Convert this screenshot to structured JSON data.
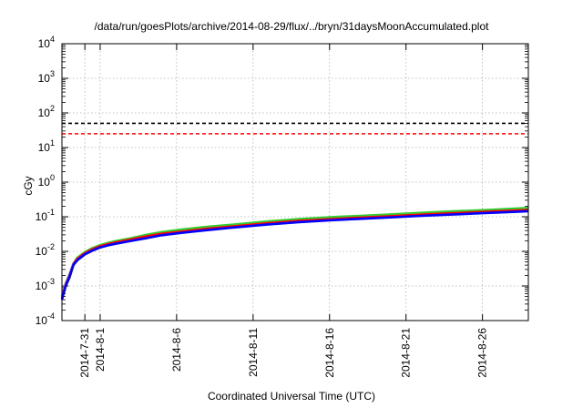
{
  "chart_data": {
    "type": "line",
    "title": "/data/run/goesPlots/archive/2014-08-29/flux/../bryn/31daysMoonAccumulated.plot",
    "xlabel": "Coordinated Universal Time (UTC)",
    "ylabel": "cGy",
    "yscale": "log",
    "ylim": [
      0.0001,
      10000
    ],
    "y_ticks": [
      {
        "value": 0.0001,
        "base": "10",
        "exp": "-4"
      },
      {
        "value": 0.001,
        "base": "10",
        "exp": "-3"
      },
      {
        "value": 0.01,
        "base": "10",
        "exp": "-2"
      },
      {
        "value": 0.1,
        "base": "10",
        "exp": "-1"
      },
      {
        "value": 1,
        "base": "10",
        "exp": "0"
      },
      {
        "value": 10,
        "base": "10",
        "exp": "1"
      },
      {
        "value": 100,
        "base": "10",
        "exp": "2"
      },
      {
        "value": 1000,
        "base": "10",
        "exp": "3"
      },
      {
        "value": 10000,
        "base": "10",
        "exp": "4"
      }
    ],
    "xlim": [
      "2014-07-29T12:00",
      "2014-08-29T00:00"
    ],
    "x_ticks": [
      {
        "value": "2014-07-31",
        "label": "2014-7-31"
      },
      {
        "value": "2014-08-01",
        "label": "2014-8-1"
      },
      {
        "value": "2014-08-06",
        "label": "2014-8-6"
      },
      {
        "value": "2014-08-11",
        "label": "2014-8-11"
      },
      {
        "value": "2014-08-16",
        "label": "2014-8-16"
      },
      {
        "value": "2014-08-21",
        "label": "2014-8-21"
      },
      {
        "value": "2014-08-26",
        "label": "2014-8-26"
      }
    ],
    "grid": true,
    "reference_lines": [
      {
        "y": 50,
        "color": "#000000",
        "style": "dashed"
      },
      {
        "y": 25,
        "color": "#ff0000",
        "style": "dashed"
      }
    ],
    "series": [
      {
        "color": "#33cc33",
        "x": [
          "2014-07-29T12:00",
          "2014-07-29T18:00",
          "2014-07-30T00:00",
          "2014-07-30T06:00",
          "2014-07-30T12:00",
          "2014-07-31T00:00",
          "2014-07-31T12:00",
          "2014-08-01T00:00",
          "2014-08-01T12:00",
          "2014-08-02T00:00",
          "2014-08-03T00:00",
          "2014-08-04T00:00",
          "2014-08-05T00:00",
          "2014-08-06T00:00",
          "2014-08-07T00:00",
          "2014-08-08T00:00",
          "2014-08-10T00:00",
          "2014-08-12T00:00",
          "2014-08-14T00:00",
          "2014-08-16T00:00",
          "2014-08-18T00:00",
          "2014-08-20T00:00",
          "2014-08-22T00:00",
          "2014-08-24T00:00",
          "2014-08-26T00:00",
          "2014-08-28T00:00",
          "2014-08-29T00:00"
        ],
        "values": [
          0.0005,
          0.0012,
          0.0022,
          0.0045,
          0.0065,
          0.0095,
          0.0125,
          0.0152,
          0.0175,
          0.0198,
          0.024,
          0.03,
          0.036,
          0.041,
          0.046,
          0.051,
          0.061,
          0.074,
          0.086,
          0.097,
          0.106,
          0.117,
          0.13,
          0.143,
          0.155,
          0.17,
          0.18
        ]
      },
      {
        "color": "#ff0000",
        "x": [
          "2014-07-29T12:00",
          "2014-07-29T18:00",
          "2014-07-30T00:00",
          "2014-07-30T06:00",
          "2014-07-30T12:00",
          "2014-07-31T00:00",
          "2014-07-31T12:00",
          "2014-08-01T00:00",
          "2014-08-01T12:00",
          "2014-08-02T00:00",
          "2014-08-03T00:00",
          "2014-08-04T00:00",
          "2014-08-05T00:00",
          "2014-08-06T00:00",
          "2014-08-07T00:00",
          "2014-08-08T00:00",
          "2014-08-10T00:00",
          "2014-08-12T00:00",
          "2014-08-14T00:00",
          "2014-08-16T00:00",
          "2014-08-18T00:00",
          "2014-08-20T00:00",
          "2014-08-22T00:00",
          "2014-08-24T00:00",
          "2014-08-26T00:00",
          "2014-08-28T00:00",
          "2014-08-29T00:00"
        ],
        "values": [
          0.00045,
          0.0011,
          0.002,
          0.0042,
          0.006,
          0.0088,
          0.0115,
          0.014,
          0.016,
          0.018,
          0.022,
          0.027,
          0.032,
          0.036,
          0.04,
          0.045,
          0.054,
          0.065,
          0.076,
          0.085,
          0.094,
          0.104,
          0.115,
          0.126,
          0.138,
          0.15,
          0.158
        ]
      },
      {
        "color": "#0000ff",
        "x": [
          "2014-07-29T12:00",
          "2014-07-29T18:00",
          "2014-07-30T00:00",
          "2014-07-30T06:00",
          "2014-07-30T12:00",
          "2014-07-31T00:00",
          "2014-07-31T12:00",
          "2014-08-01T00:00",
          "2014-08-01T12:00",
          "2014-08-02T00:00",
          "2014-08-03T00:00",
          "2014-08-04T00:00",
          "2014-08-05T00:00",
          "2014-08-06T00:00",
          "2014-08-07T00:00",
          "2014-08-08T00:00",
          "2014-08-10T00:00",
          "2014-08-12T00:00",
          "2014-08-14T00:00",
          "2014-08-16T00:00",
          "2014-08-18T00:00",
          "2014-08-20T00:00",
          "2014-08-22T00:00",
          "2014-08-24T00:00",
          "2014-08-26T00:00",
          "2014-08-28T00:00",
          "2014-08-29T00:00"
        ],
        "values": [
          0.0004,
          0.001,
          0.0018,
          0.004,
          0.0055,
          0.0082,
          0.0105,
          0.013,
          0.0148,
          0.0165,
          0.02,
          0.024,
          0.029,
          0.033,
          0.037,
          0.041,
          0.05,
          0.06,
          0.07,
          0.079,
          0.087,
          0.096,
          0.106,
          0.116,
          0.127,
          0.138,
          0.145
        ]
      }
    ]
  }
}
